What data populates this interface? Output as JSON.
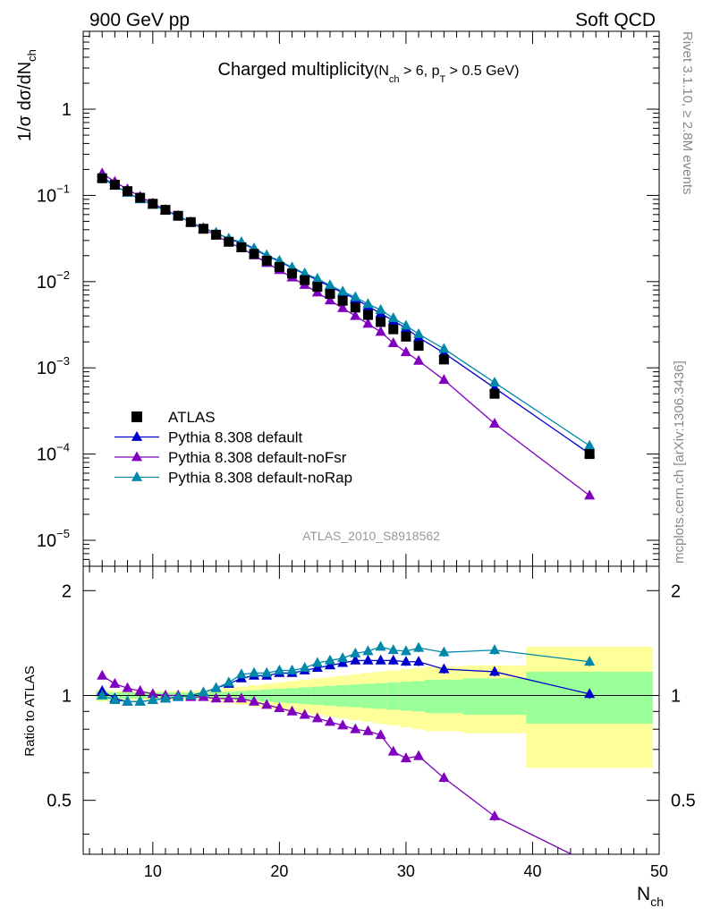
{
  "header": {
    "left": "900 GeV pp",
    "right": "Soft QCD"
  },
  "side_labels": {
    "top": "Rivet 3.1.10, ≥ 2.8M events",
    "bottom": "mcplots.cern.ch [arXiv:1306.3436]"
  },
  "chart_data": {
    "type": "line",
    "title_main": "Charged multiplicity",
    "title_sub_parts": [
      "(N",
      "ch",
      " > 6, p",
      "T",
      " > 0.5 GeV)"
    ],
    "watermark": "ATLAS_2010_S8918562",
    "xlabel_main": "N",
    "xlabel_sub": "ch",
    "ylabel_main": "1/σ dσ/dN",
    "ylabel_sub": "ch",
    "ratio_ylabel": "Ratio to ATLAS",
    "xlim": [
      4.5,
      50
    ],
    "ylim_main": [
      5e-06,
      8
    ],
    "ylog_main": true,
    "ylim_ratio": [
      0.35,
      2.35
    ],
    "ylog_ratio": true,
    "x_ticks": [
      10,
      20,
      30,
      40,
      50
    ],
    "x_tick_labels": [
      "10",
      "20",
      "30",
      "40",
      "50"
    ],
    "main_tick_labels": [
      {
        "value": 1,
        "base": "1",
        "exp": ""
      },
      {
        "value": 0.1,
        "base": "10",
        "exp": "−1"
      },
      {
        "value": 0.01,
        "base": "10",
        "exp": "−2"
      },
      {
        "value": 0.001,
        "base": "10",
        "exp": "−3"
      },
      {
        "value": 0.0001,
        "base": "10",
        "exp": "−4"
      },
      {
        "value": 1e-05,
        "base": "10",
        "exp": "−5"
      }
    ],
    "ratio_tick_labels": [
      {
        "value": 2,
        "label": "2"
      },
      {
        "value": 1,
        "label": "1"
      },
      {
        "value": 0.5,
        "label": "0.5"
      }
    ],
    "legend_position": "lower-left",
    "x": [
      6,
      7,
      8,
      9,
      10,
      11,
      12,
      13,
      14,
      15,
      16,
      17,
      18,
      19,
      20,
      21,
      22,
      23,
      24,
      25,
      26,
      27,
      28,
      29,
      30,
      31,
      33,
      37,
      44.5
    ],
    "bin_edges": [
      5.5,
      6.5,
      7.5,
      8.5,
      9.5,
      10.5,
      11.5,
      12.5,
      13.5,
      14.5,
      15.5,
      16.5,
      17.5,
      18.5,
      19.5,
      20.5,
      21.5,
      22.5,
      23.5,
      24.5,
      25.5,
      26.5,
      27.5,
      28.5,
      29.5,
      30.5,
      31.5,
      34.5,
      39.5,
      49.5
    ],
    "data": {
      "name": "ATLAS",
      "color": "#000000",
      "values": [
        0.158,
        0.133,
        0.112,
        0.094,
        0.08,
        0.068,
        0.058,
        0.049,
        0.041,
        0.035,
        0.029,
        0.025,
        0.021,
        0.0175,
        0.0148,
        0.0124,
        0.0104,
        0.0087,
        0.0072,
        0.006,
        0.005,
        0.0041,
        0.0034,
        0.0028,
        0.0023,
        0.0018,
        0.00125,
        0.0005,
        0.0001
      ],
      "band_stat_half": [
        0.03,
        0.02,
        0.02,
        0.02,
        0.02,
        0.02,
        0.02,
        0.02,
        0.02,
        0.02,
        0.025,
        0.03,
        0.035,
        0.04,
        0.045,
        0.05,
        0.055,
        0.06,
        0.065,
        0.07,
        0.075,
        0.08,
        0.085,
        0.09,
        0.095,
        0.1,
        0.11,
        0.12,
        0.17
      ],
      "band_total_half": [
        0.04,
        0.03,
        0.03,
        0.03,
        0.03,
        0.03,
        0.03,
        0.03,
        0.035,
        0.04,
        0.05,
        0.06,
        0.07,
        0.08,
        0.09,
        0.1,
        0.11,
        0.12,
        0.13,
        0.14,
        0.15,
        0.16,
        0.17,
        0.18,
        0.19,
        0.2,
        0.21,
        0.22,
        0.38
      ]
    },
    "series": [
      {
        "name": "Pythia 8.308 default",
        "color": "#0000cc",
        "ratio": [
          1.03,
          0.98,
          0.96,
          0.96,
          0.97,
          0.98,
          0.99,
          1.0,
          1.02,
          1.05,
          1.08,
          1.12,
          1.14,
          1.14,
          1.16,
          1.16,
          1.18,
          1.2,
          1.22,
          1.24,
          1.26,
          1.26,
          1.26,
          1.26,
          1.25,
          1.25,
          1.19,
          1.17,
          1.01
        ]
      },
      {
        "name": "Pythia 8.308 default-noFsr",
        "color": "#8000c0",
        "ratio": [
          1.14,
          1.08,
          1.05,
          1.03,
          1.01,
          1.0,
          1.0,
          0.99,
          0.99,
          0.98,
          0.98,
          0.98,
          0.96,
          0.94,
          0.92,
          0.9,
          0.88,
          0.86,
          0.84,
          0.82,
          0.8,
          0.79,
          0.77,
          0.69,
          0.66,
          0.67,
          0.58,
          0.45,
          0.33
        ]
      },
      {
        "name": "Pythia 8.308 default-noRap",
        "color": "#0088aa",
        "ratio": [
          1.0,
          0.97,
          0.96,
          0.96,
          0.97,
          0.98,
          0.99,
          1.0,
          1.02,
          1.05,
          1.09,
          1.15,
          1.16,
          1.16,
          1.18,
          1.18,
          1.2,
          1.24,
          1.26,
          1.28,
          1.32,
          1.34,
          1.38,
          1.35,
          1.34,
          1.37,
          1.33,
          1.35,
          1.25
        ]
      }
    ]
  }
}
